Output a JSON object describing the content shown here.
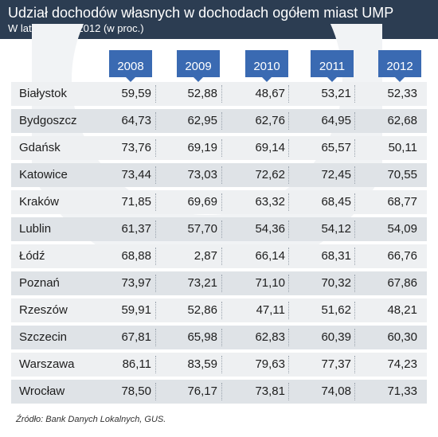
{
  "title": "Udział dochodów własnych w dochodach ogółem miast UMP",
  "subtitle": "W latach 2008-2012 (w proc.)",
  "source": "Źródło: Bank Danych Lokalnych, GUS.",
  "colors": {
    "header": "#2c3d52",
    "year_tab": "#3a6ab2",
    "row_light": "#eef0f2",
    "row_dark": "#dfe3e7"
  },
  "chart_data": {
    "type": "table",
    "columns": [
      "2008",
      "2009",
      "2010",
      "2011",
      "2012"
    ],
    "rows": [
      {
        "city": "Białystok",
        "values": [
          "59,59",
          "52,88",
          "48,67",
          "53,21",
          "52,33"
        ]
      },
      {
        "city": "Bydgoszcz",
        "values": [
          "64,73",
          "62,95",
          "62,76",
          "64,95",
          "62,68"
        ]
      },
      {
        "city": "Gdańsk",
        "values": [
          "73,76",
          "69,19",
          "69,14",
          "65,57",
          "50,11"
        ]
      },
      {
        "city": "Katowice",
        "values": [
          "73,44",
          "73,03",
          "72,62",
          "72,45",
          "70,55"
        ]
      },
      {
        "city": "Kraków",
        "values": [
          "71,85",
          "69,69",
          "63,32",
          "68,45",
          "68,77"
        ]
      },
      {
        "city": "Lublin",
        "values": [
          "61,37",
          "57,70",
          "54,36",
          "54,12",
          "54,09"
        ]
      },
      {
        "city": "Łódź",
        "values": [
          "68,88",
          "2,87",
          "66,14",
          "68,31",
          "66,76"
        ]
      },
      {
        "city": "Poznań",
        "values": [
          "73,97",
          "73,21",
          "71,10",
          "70,32",
          "67,86"
        ]
      },
      {
        "city": "Rzeszów",
        "values": [
          "59,91",
          "52,86",
          "47,11",
          "51,62",
          "48,21"
        ]
      },
      {
        "city": "Szczecin",
        "values": [
          "67,81",
          "65,98",
          "62,83",
          "60,39",
          "60,30"
        ]
      },
      {
        "city": "Warszawa",
        "values": [
          "86,11",
          "83,59",
          "79,63",
          "77,37",
          "74,23"
        ]
      },
      {
        "city": "Wrocław",
        "values": [
          "78,50",
          "76,17",
          "73,81",
          "74,08",
          "71,33"
        ]
      }
    ]
  }
}
